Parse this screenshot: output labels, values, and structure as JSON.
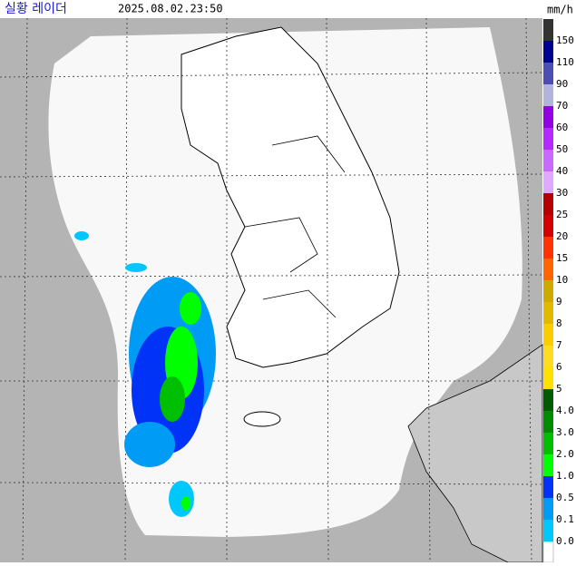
{
  "header": {
    "title": "실황 레이더",
    "timestamp": "2025.08.02.23:50",
    "unit": "mm/h"
  },
  "legend": {
    "items": [
      {
        "label": "150",
        "color": "#333333"
      },
      {
        "label": "110",
        "color": "#000390"
      },
      {
        "label": "90",
        "color": "#4c4eb1"
      },
      {
        "label": "70",
        "color": "#b3b4de"
      },
      {
        "label": "60",
        "color": "#9300e4"
      },
      {
        "label": "50",
        "color": "#b329ff"
      },
      {
        "label": "40",
        "color": "#c969ff"
      },
      {
        "label": "30",
        "color": "#e0a9ff"
      },
      {
        "label": "25",
        "color": "#b40000"
      },
      {
        "label": "20",
        "color": "#d20000"
      },
      {
        "label": "15",
        "color": "#ff3200"
      },
      {
        "label": "10",
        "color": "#ff6600"
      },
      {
        "label": "9",
        "color": "#ccaa00"
      },
      {
        "label": "8",
        "color": "#e0b900"
      },
      {
        "label": "7",
        "color": "#f9cd00"
      },
      {
        "label": "6",
        "color": "#ffdc1f"
      },
      {
        "label": "5",
        "color": "#ffe100"
      },
      {
        "label": "4.0",
        "color": "#005a00"
      },
      {
        "label": "3.0",
        "color": "#008c00"
      },
      {
        "label": "2.0",
        "color": "#00be00"
      },
      {
        "label": "1.0",
        "color": "#00ff00"
      },
      {
        "label": "0.5",
        "color": "#0033f5"
      },
      {
        "label": "0.1",
        "color": "#009bf5"
      },
      {
        "label": "0.0",
        "color": "#00c8ff"
      }
    ]
  }
}
